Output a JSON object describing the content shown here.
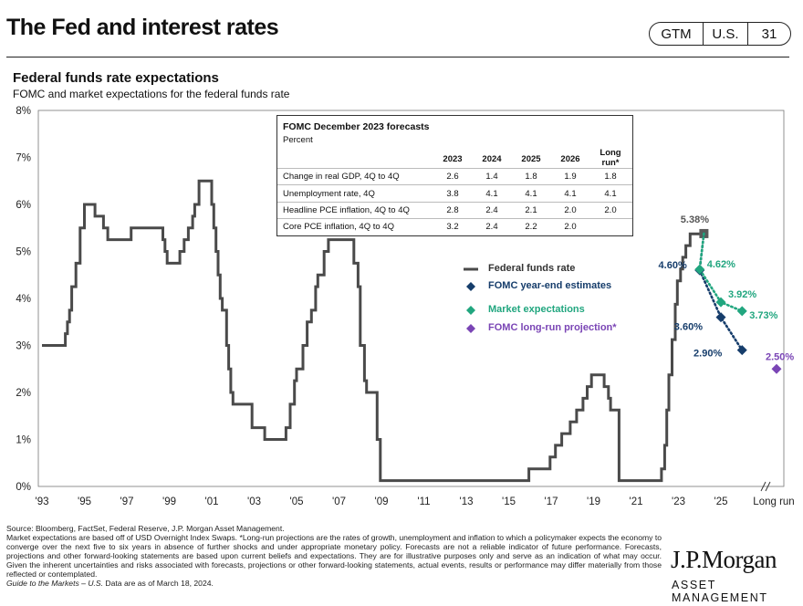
{
  "header": {
    "title": "The Fed and interest rates",
    "tag_gtm": "GTM",
    "tag_region": "U.S.",
    "tag_page": "31"
  },
  "section": {
    "title": "Federal funds rate expectations",
    "subtitle": "FOMC and market expectations for the federal funds rate"
  },
  "table": {
    "title": "FOMC December 2023 forecasts",
    "unit": "Percent",
    "columns": [
      "2023",
      "2024",
      "2025",
      "2026",
      "Long run*"
    ],
    "rows": [
      {
        "label": "Change in real GDP, 4Q to 4Q",
        "values": [
          "2.6",
          "1.4",
          "1.8",
          "1.9",
          "1.8"
        ]
      },
      {
        "label": "Unemployment rate, 4Q",
        "values": [
          "3.8",
          "4.1",
          "4.1",
          "4.1",
          "4.1"
        ]
      },
      {
        "label": "Headline PCE inflation, 4Q to 4Q",
        "values": [
          "2.8",
          "2.4",
          "2.1",
          "2.0",
          "2.0"
        ]
      },
      {
        "label": "Core PCE inflation, 4Q to 4Q",
        "values": [
          "3.2",
          "2.4",
          "2.2",
          "2.0",
          ""
        ]
      }
    ]
  },
  "legend": {
    "fed_funds": "Federal funds rate",
    "fomc": "FOMC year-end estimates",
    "market": "Market expectations",
    "longrun": "FOMC long-run projection*"
  },
  "colors": {
    "fed_funds": "#4a4a4a",
    "fomc": "#163d6b",
    "market": "#21a67f",
    "longrun": "#7a45b5",
    "current": "#5a5a5a"
  },
  "chart_data": {
    "type": "line",
    "ylim": [
      0,
      8
    ],
    "yticks": [
      "0%",
      "1%",
      "2%",
      "3%",
      "4%",
      "5%",
      "6%",
      "7%",
      "8%"
    ],
    "xticks": [
      "'93",
      "'95",
      "'97",
      "'99",
      "'01",
      "'03",
      "'05",
      "'07",
      "'09",
      "'11",
      "'13",
      "'15",
      "'17",
      "'19",
      "'21",
      "'23",
      "'25",
      "Long run"
    ],
    "series": [
      {
        "name": "Federal funds rate",
        "points": [
          [
            1993.0,
            3.0
          ],
          [
            1994.1,
            3.25
          ],
          [
            1994.2,
            3.5
          ],
          [
            1994.3,
            3.75
          ],
          [
            1994.4,
            4.25
          ],
          [
            1994.6,
            4.75
          ],
          [
            1994.8,
            5.5
          ],
          [
            1995.0,
            6.0
          ],
          [
            1995.5,
            5.75
          ],
          [
            1995.9,
            5.5
          ],
          [
            1996.1,
            5.25
          ],
          [
            1997.2,
            5.5
          ],
          [
            1998.7,
            5.25
          ],
          [
            1998.8,
            5.0
          ],
          [
            1998.9,
            4.75
          ],
          [
            1999.5,
            5.0
          ],
          [
            1999.7,
            5.25
          ],
          [
            1999.9,
            5.5
          ],
          [
            2000.1,
            5.75
          ],
          [
            2000.2,
            6.0
          ],
          [
            2000.4,
            6.5
          ],
          [
            2001.0,
            6.0
          ],
          [
            2001.1,
            5.5
          ],
          [
            2001.2,
            5.0
          ],
          [
            2001.3,
            4.5
          ],
          [
            2001.4,
            4.0
          ],
          [
            2001.5,
            3.75
          ],
          [
            2001.7,
            3.0
          ],
          [
            2001.8,
            2.5
          ],
          [
            2001.9,
            2.0
          ],
          [
            2002.0,
            1.75
          ],
          [
            2002.9,
            1.25
          ],
          [
            2003.5,
            1.0
          ],
          [
            2004.5,
            1.25
          ],
          [
            2004.7,
            1.75
          ],
          [
            2004.9,
            2.25
          ],
          [
            2005.0,
            2.5
          ],
          [
            2005.3,
            3.0
          ],
          [
            2005.5,
            3.5
          ],
          [
            2005.7,
            3.75
          ],
          [
            2005.9,
            4.25
          ],
          [
            2006.0,
            4.5
          ],
          [
            2006.3,
            5.0
          ],
          [
            2006.5,
            5.25
          ],
          [
            2007.7,
            4.75
          ],
          [
            2007.9,
            4.25
          ],
          [
            2008.0,
            3.0
          ],
          [
            2008.2,
            2.25
          ],
          [
            2008.3,
            2.0
          ],
          [
            2008.8,
            1.0
          ],
          [
            2008.95,
            0.125
          ],
          [
            2015.95,
            0.375
          ],
          [
            2016.95,
            0.625
          ],
          [
            2017.2,
            0.875
          ],
          [
            2017.5,
            1.125
          ],
          [
            2017.9,
            1.375
          ],
          [
            2018.2,
            1.625
          ],
          [
            2018.5,
            1.875
          ],
          [
            2018.7,
            2.125
          ],
          [
            2018.9,
            2.375
          ],
          [
            2019.5,
            2.125
          ],
          [
            2019.7,
            1.875
          ],
          [
            2019.8,
            1.625
          ],
          [
            2020.2,
            0.125
          ],
          [
            2022.2,
            0.375
          ],
          [
            2022.35,
            0.875
          ],
          [
            2022.45,
            1.625
          ],
          [
            2022.55,
            2.375
          ],
          [
            2022.7,
            3.125
          ],
          [
            2022.85,
            3.875
          ],
          [
            2022.95,
            4.375
          ],
          [
            2023.1,
            4.625
          ],
          [
            2023.2,
            4.875
          ],
          [
            2023.35,
            5.125
          ],
          [
            2023.55,
            5.375
          ],
          [
            2024.2,
            5.375
          ]
        ]
      },
      {
        "name": "FOMC year-end estimates",
        "points": [
          [
            "2024",
            4.6
          ],
          [
            "2025",
            3.6
          ],
          [
            "2026",
            2.9
          ]
        ],
        "labels": [
          "4.60%",
          "3.60%",
          "2.90%"
        ]
      },
      {
        "name": "Market expectations",
        "points": [
          [
            "2024",
            4.62
          ],
          [
            "2025",
            3.92
          ],
          [
            "2026",
            3.73
          ]
        ],
        "labels": [
          "4.62%",
          "3.92%",
          "3.73%"
        ]
      },
      {
        "name": "FOMC long-run projection*",
        "points": [
          [
            "Long run",
            2.5
          ]
        ],
        "labels": [
          "2.50%"
        ]
      }
    ],
    "current_value_label": "5.38%",
    "current_value": 5.38
  },
  "footnotes": {
    "source": "Source: Bloomberg, FactSet, Federal Reserve, J.P. Morgan Asset Management.",
    "body": "Market expectations are based off of USD Overnight Index Swaps. *Long-run projections are the rates of growth, unemployment and inflation to which a policymaker expects the economy to converge over the next five to six years in absence of further shocks and under appropriate monetary policy. Forecasts are not a reliable indicator of future performance. Forecasts, projections and other forward-looking statements are based upon current beliefs and expectations. They are for illustrative purposes only and serve as an indication of what may occur. Given the inherent uncertainties and risks associated with forecasts, projections or other forward-looking statements, actual events, results or performance may differ materially from those reflected or contemplated.",
    "gtm_italic": "Guide to the Markets – U.S.",
    "gtm_date": " Data are as of March 18, 2024."
  },
  "logo": {
    "main": "J.P.Morgan",
    "sub": "ASSET MANAGEMENT"
  }
}
